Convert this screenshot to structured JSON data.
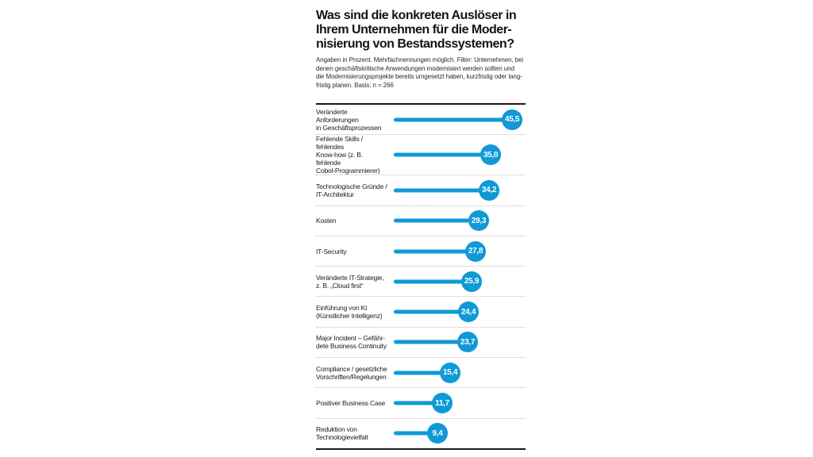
{
  "chart_data": {
    "type": "bar",
    "orientation": "horizontal",
    "title": "Was sind die konkreten Auslöser in\nIhrem Unternehmen für die Moder-\nnisierung von Bestandssystemen?",
    "subtitle": "Angaben in Prozent. Mehrfachnennungen möglich. Filter: Unternehmen, bei\ndenen geschäftskritische Anwendungen modernisiert werden sollten und\ndie Modernisierungsprojekte bereits umgesetzt haben, kurzfristig oder lang-\nfristig planen. Basis: n = 266",
    "unit": "Prozent",
    "basis": "n = 266",
    "categories": [
      "Veränderte Anforderungen\nin Geschäftsprozessen",
      "Fehlende Skills / fehlendes\nKnow-how (z. B. fehlende\nCobol-Programmierer)",
      "Technologische Gründe /\nIT-Architektur",
      "Kosten",
      "IT-Security",
      "Veränderte IT-Strategie,\nz. B. „Cloud first“",
      "Einführung von KI\n(Künstlicher Intelligenz)",
      "Major Incident – Gefähr-\ndete Business Continuity",
      "Compliance / gesetzliche\nVorschriften/Regelungen",
      "Positiver Business Case",
      "Reduktion von\nTechnologievielfalt"
    ],
    "values": [
      45.5,
      35.0,
      34.2,
      29.3,
      27.8,
      25.9,
      24.4,
      23.7,
      15.4,
      11.7,
      9.4
    ],
    "value_labels": [
      "45,5",
      "35,0",
      "34,2",
      "29,3",
      "27,8",
      "25,9",
      "24,4",
      "23,7",
      "15,4",
      "11,7",
      "9,4"
    ],
    "xlim": [
      0,
      50
    ],
    "grid": false,
    "legend": false,
    "colors": {
      "bar": "#0f9ad6",
      "bubble_text": "#ffffff",
      "rule": "#1a1a1a",
      "separator": "#c0c0c0",
      "title_text": "#141414",
      "label_text": "#1c1c1c"
    }
  }
}
